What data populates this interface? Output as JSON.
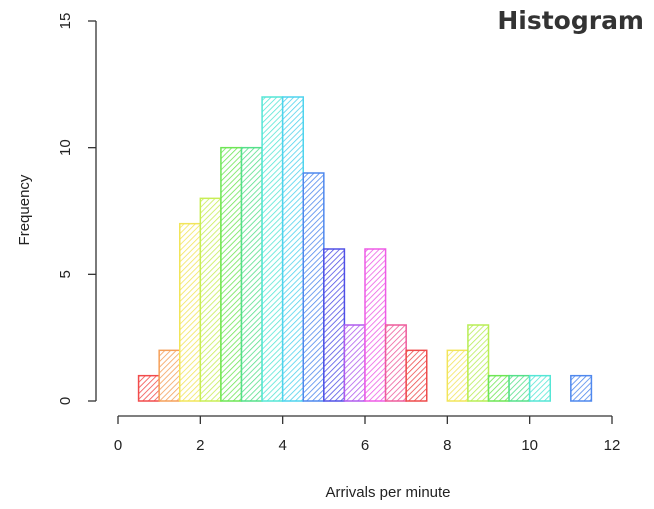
{
  "header": {
    "title": "Histogram"
  },
  "chart_data": {
    "type": "bar",
    "title": "",
    "xlabel": "Arrivals per minute",
    "ylabel": "Frequency",
    "bin_width": 0.5,
    "bins": [
      {
        "start": 0.5,
        "end": 1.0,
        "count": 1,
        "color": "#F24C4C"
      },
      {
        "start": 1.0,
        "end": 1.5,
        "count": 2,
        "color": "#F5A05A"
      },
      {
        "start": 1.5,
        "end": 2.0,
        "count": 7,
        "color": "#F2E55A"
      },
      {
        "start": 2.0,
        "end": 2.5,
        "count": 8,
        "color": "#C8EE55"
      },
      {
        "start": 2.5,
        "end": 3.0,
        "count": 10,
        "color": "#6EE655"
      },
      {
        "start": 3.0,
        "end": 3.5,
        "count": 10,
        "color": "#55E08A"
      },
      {
        "start": 3.5,
        "end": 4.0,
        "count": 12,
        "color": "#55E6D6"
      },
      {
        "start": 4.0,
        "end": 4.5,
        "count": 12,
        "color": "#4FD3EE"
      },
      {
        "start": 4.5,
        "end": 5.0,
        "count": 9,
        "color": "#4F88EE"
      },
      {
        "start": 5.0,
        "end": 5.5,
        "count": 6,
        "color": "#5050E6"
      },
      {
        "start": 5.5,
        "end": 6.0,
        "count": 3,
        "color": "#B05CEE"
      },
      {
        "start": 6.0,
        "end": 6.5,
        "count": 6,
        "color": "#EE5CE6"
      },
      {
        "start": 6.5,
        "end": 7.0,
        "count": 3,
        "color": "#EE5C9C"
      },
      {
        "start": 7.0,
        "end": 7.5,
        "count": 2,
        "color": "#EE4C4C"
      },
      {
        "start": 7.5,
        "end": 8.0,
        "count": 0,
        "color": "#F5A05A"
      },
      {
        "start": 8.0,
        "end": 8.5,
        "count": 2,
        "color": "#F2E55A"
      },
      {
        "start": 8.5,
        "end": 9.0,
        "count": 3,
        "color": "#B8EE55"
      },
      {
        "start": 9.0,
        "end": 9.5,
        "count": 1,
        "color": "#6EE655"
      },
      {
        "start": 9.5,
        "end": 10.0,
        "count": 1,
        "color": "#55E08A"
      },
      {
        "start": 10.0,
        "end": 10.5,
        "count": 1,
        "color": "#55E6D6"
      },
      {
        "start": 10.5,
        "end": 11.0,
        "count": 0,
        "color": "#4FD3EE"
      },
      {
        "start": 11.0,
        "end": 11.5,
        "count": 1,
        "color": "#4F88EE"
      }
    ],
    "xlim": [
      0,
      12
    ],
    "ylim": [
      0,
      15
    ],
    "x_ticks": [
      "0",
      "2",
      "4",
      "6",
      "8",
      "10",
      "12"
    ],
    "y_ticks": [
      "0",
      "5",
      "10",
      "15"
    ],
    "fill": "diagonal-hatch",
    "grid": false,
    "legend": "none"
  }
}
